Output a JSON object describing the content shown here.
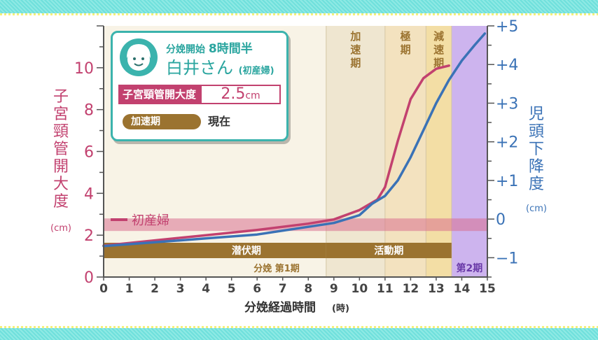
{
  "chart_data": {
    "type": "line",
    "xlabel": "分娩経過時間",
    "xlabel_unit": "(時)",
    "x_ticks": [
      0,
      1,
      2,
      3,
      4,
      5,
      6,
      7,
      8,
      9,
      10,
      11,
      12,
      13,
      14,
      15
    ],
    "xlim": [
      0,
      15
    ],
    "y_left": {
      "label": "子宮頸管開大度",
      "unit": "(cm)",
      "lim": [
        0,
        12
      ],
      "ticks": [
        0,
        2,
        4,
        6,
        8,
        10
      ]
    },
    "y_right": {
      "label": "児頭下降度",
      "unit": "(cm)",
      "lim": [
        -1.5,
        5
      ],
      "ticks": [
        "−1",
        "0",
        "+1",
        "+2",
        "+3",
        "+4",
        "+5"
      ],
      "tick_values": [
        -1,
        0,
        1,
        2,
        3,
        4,
        5
      ]
    },
    "series": [
      {
        "name": "初産婦",
        "axis": "left",
        "color": "#c2416f",
        "x": [
          0,
          2,
          4,
          6,
          8,
          9,
          10,
          10.7,
          11,
          11.5,
          12,
          12.5,
          13,
          13.5
        ],
        "y": [
          1.5,
          1.75,
          2.0,
          2.25,
          2.55,
          2.75,
          3.2,
          3.7,
          4.3,
          6.5,
          8.5,
          9.5,
          9.95,
          10.1
        ]
      },
      {
        "name": "",
        "axis": "right",
        "color": "#3a72b6",
        "x": [
          0,
          2,
          4,
          6,
          8,
          9,
          10,
          10.5,
          11,
          11.5,
          12,
          12.5,
          13,
          13.5,
          14,
          14.5,
          14.9
        ],
        "y": [
          -0.7,
          -0.6,
          -0.5,
          -0.4,
          -0.2,
          -0.1,
          0.1,
          0.4,
          0.6,
          1.0,
          1.6,
          2.3,
          3.0,
          3.6,
          4.1,
          4.5,
          4.8
        ]
      }
    ],
    "regions": [
      {
        "label": "加速期",
        "x": [
          8.7,
          11
        ]
      },
      {
        "label": "極期",
        "x": [
          11,
          12.6
        ]
      },
      {
        "label": "減速期",
        "x": [
          12.6,
          13.6
        ]
      },
      {
        "label": "第2期",
        "x": [
          13.6,
          15
        ]
      }
    ],
    "phase_bars": [
      {
        "label": "潜伏期",
        "x": [
          0,
          8.7
        ]
      },
      {
        "label": "活動期",
        "x": [
          8.7,
          13.6
        ]
      }
    ],
    "stage1_label": "分娩 第1期",
    "stage1_x": [
      0,
      13.6
    ],
    "highlight_band": {
      "ylim": [
        2.2,
        2.8
      ]
    },
    "legend_entry": "初産婦"
  },
  "card": {
    "title_prefix": "分娩開始",
    "title_value": "8時間半",
    "name": "白井さん",
    "name_note": "(初産婦)",
    "dilation_label": "子宮頸管開大度",
    "dilation_value": "2.5",
    "dilation_unit": "cm",
    "phase_label": "加速期",
    "now_label": "現在"
  },
  "colors": {
    "pink": "#c2416f",
    "blue": "#3a72b6",
    "teal": "#3bb3ad",
    "brown": "#9b7330",
    "purple": "#cdb4ee"
  }
}
